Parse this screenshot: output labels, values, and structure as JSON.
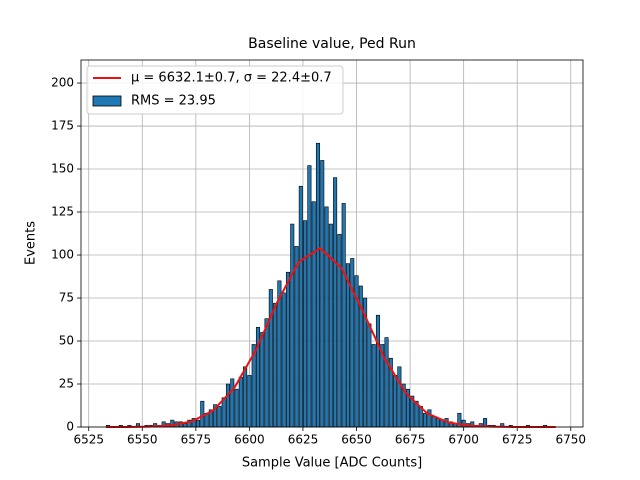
{
  "chart_data": {
    "type": "histogram",
    "title": "Baseline value, Ped Run",
    "xlabel": "Sample Value [ADC Counts]",
    "ylabel": "Events",
    "xlim": [
      6521.4,
      6755.7
    ],
    "ylim": [
      0,
      213.4
    ],
    "xticks": [
      6525,
      6550,
      6575,
      6600,
      6625,
      6650,
      6675,
      6700,
      6725,
      6750
    ],
    "yticks": [
      0,
      25,
      50,
      75,
      100,
      125,
      150,
      175,
      200
    ],
    "grid": true,
    "legend": "upper left",
    "series": [
      {
        "type": "histogram",
        "name": "RMS = 23.95",
        "color": "#1f77b4",
        "edgecolor": "#000000",
        "bins": [
          6533,
          6535,
          6537,
          6539,
          6541,
          6543,
          6545,
          6547,
          6549,
          6551,
          6553,
          6555,
          6557,
          6559,
          6561,
          6563,
          6565,
          6567,
          6569,
          6571,
          6573,
          6575,
          6577,
          6579,
          6581,
          6583,
          6585,
          6587,
          6589,
          6591,
          6593,
          6595,
          6597,
          6599,
          6601,
          6603,
          6605,
          6607,
          6609,
          6611,
          6613,
          6615,
          6617,
          6619,
          6621,
          6623,
          6625,
          6627,
          6629,
          6631,
          6633,
          6635,
          6637,
          6639,
          6641,
          6643,
          6645,
          6647,
          6649,
          6651,
          6653,
          6655,
          6657,
          6659,
          6661,
          6663,
          6665,
          6667,
          6669,
          6671,
          6673,
          6675,
          6677,
          6679,
          6681,
          6683,
          6685,
          6687,
          6689,
          6691,
          6693,
          6695,
          6697,
          6699,
          6701,
          6703,
          6705,
          6707,
          6709,
          6711,
          6713,
          6715,
          6717,
          6719,
          6721,
          6723,
          6725,
          6727,
          6729,
          6731,
          6733,
          6735,
          6737,
          6739,
          6741,
          6743
        ],
        "values": [
          1,
          0,
          0,
          1,
          0,
          1,
          0,
          2,
          0,
          1,
          1,
          2,
          1,
          3,
          2,
          4,
          3,
          3,
          2,
          4,
          5,
          4,
          15,
          8,
          10,
          13,
          12,
          17,
          25,
          28,
          22,
          29,
          35,
          30,
          48,
          58,
          55,
          63,
          80,
          72,
          85,
          78,
          90,
          118,
          105,
          140,
          120,
          152,
          131,
          165,
          155,
          128,
          118,
          145,
          112,
          130,
          95,
          98,
          88,
          82,
          75,
          60,
          48,
          65,
          48,
          52,
          40,
          30,
          35,
          25,
          22,
          18,
          15,
          12,
          8,
          10,
          6,
          5,
          4,
          5,
          3,
          2,
          8,
          4,
          2,
          3,
          1,
          2,
          5,
          1,
          1,
          0,
          2,
          0,
          1,
          0,
          0,
          0,
          1,
          0,
          0,
          0,
          1,
          0,
          0
        ]
      },
      {
        "type": "line",
        "name": "μ = 6632.1±0.7, σ = 22.4±0.7",
        "color": "#ee1111",
        "x": [
          6533,
          6543,
          6553,
          6563,
          6573,
          6583,
          6593,
          6603,
          6613,
          6623,
          6633,
          6643,
          6653,
          6663,
          6673,
          6683,
          6693,
          6703,
          6713,
          6723,
          6733,
          6743
        ],
        "values": [
          0.0,
          0.0,
          0.2,
          0.9,
          3.2,
          9.5,
          22.8,
          44.7,
          72.6,
          95.9,
          104.0,
          92.4,
          67.3,
          40.2,
          19.7,
          7.9,
          2.6,
          0.7,
          0.2,
          0.0,
          0.0,
          0.0
        ]
      }
    ]
  }
}
